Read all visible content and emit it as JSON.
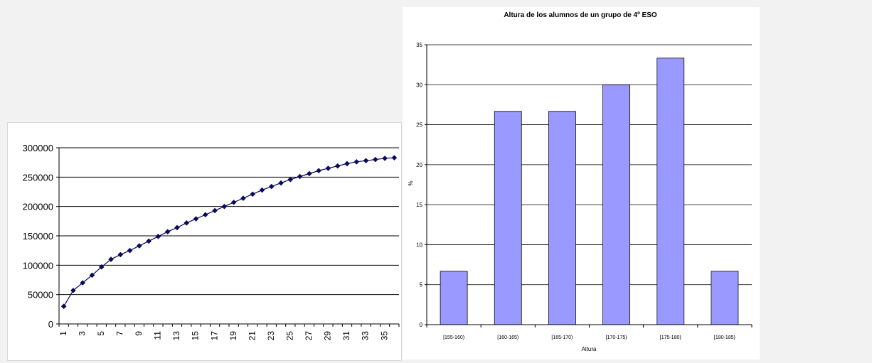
{
  "chart_data": [
    {
      "type": "line",
      "title": "",
      "xlabel": "",
      "ylabel": "",
      "x": [
        1,
        2,
        3,
        4,
        5,
        6,
        7,
        8,
        9,
        10,
        11,
        12,
        13,
        14,
        15,
        16,
        17,
        18,
        19,
        20,
        21,
        22,
        23,
        24,
        25,
        26,
        27,
        28,
        29,
        30,
        31,
        32,
        33,
        34,
        35,
        36
      ],
      "x_tick_labels": [
        "1",
        "3",
        "5",
        "7",
        "9",
        "11",
        "13",
        "15",
        "17",
        "19",
        "21",
        "23",
        "25",
        "27",
        "29",
        "31",
        "33",
        "35"
      ],
      "series": [
        {
          "values": [
            30000,
            57000,
            70000,
            83000,
            97000,
            110000,
            118000,
            125000,
            133000,
            141000,
            149000,
            157000,
            164000,
            172000,
            179000,
            186000,
            193000,
            200000,
            207000,
            214000,
            221000,
            228000,
            234000,
            240000,
            246000,
            251000,
            256000,
            261000,
            265000,
            269000,
            273000,
            276000,
            278000,
            280000,
            282000,
            283000
          ],
          "color": "#0a0a5c",
          "marker": "diamond"
        }
      ],
      "ylim": [
        0,
        300000
      ],
      "y_ticks": [
        0,
        50000,
        100000,
        150000,
        200000,
        250000,
        300000
      ],
      "grid": true,
      "legend": "none"
    },
    {
      "type": "bar",
      "title": "Altura de los alumnos de un grupo de 4º ESO",
      "xlabel": "Altura",
      "ylabel": "%",
      "categories": [
        "[155-160)",
        "[160-165)",
        "[165-170)",
        "[170-175)",
        "[175-180)",
        "[180-185)"
      ],
      "values": [
        6.67,
        26.67,
        26.67,
        30,
        33.33,
        6.67
      ],
      "ylim": [
        0,
        35
      ],
      "y_ticks": [
        0,
        5,
        10,
        15,
        20,
        25,
        30,
        35
      ],
      "bar_color": "#9999ff",
      "grid": true,
      "legend": "none"
    }
  ]
}
